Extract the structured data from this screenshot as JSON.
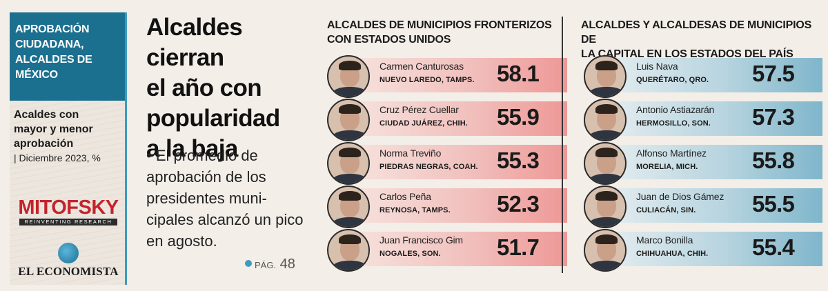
{
  "sidebar": {
    "heading_lines": [
      "APROBACIÓN",
      "CIUDADANA,",
      "ALCALDES DE",
      "MÉXICO"
    ],
    "subtitle_lines": [
      "Acaldes con",
      "mayor y menor",
      "aprobación"
    ],
    "date": "| Diciembre 2023, %",
    "mitofsky": "MITOFSKY",
    "mitofsky_tagline": "REINVENTING RESEARCH",
    "publication": "EL ECONOMISTA"
  },
  "headline_lines": [
    "Alcaldes cierran",
    "el año con",
    "popularidad",
    "a la baja"
  ],
  "summary": "• El promedio de aprobación de los presidentes muni-cipales alcanzó un pico en agosto.",
  "page_ref": {
    "label": "PÁG.",
    "number": "48"
  },
  "border_panel": {
    "title_lines": [
      "ALCALDES DE MUNICIPIOS FRONTERIZOS",
      "CON ESTADOS UNIDOS"
    ],
    "bar_color": "#ee9896",
    "items": [
      {
        "name": "Carmen Canturosas",
        "place": "NUEVO LAREDO, TAMPS.",
        "value": "58.1"
      },
      {
        "name": "Cruz Pérez Cuellar",
        "place": "CIUDAD JUÁREZ, CHIH.",
        "value": "55.9"
      },
      {
        "name": "Norma Treviño",
        "place": "PIEDRAS NEGRAS, COAH.",
        "value": "55.3"
      },
      {
        "name": "Carlos Peña",
        "place": "REYNOSA, TAMPS.",
        "value": "52.3"
      },
      {
        "name": "Juan Francisco Gim",
        "place": "NOGALES, SON.",
        "value": "51.7"
      }
    ]
  },
  "capital_panel": {
    "title_lines": [
      "ALCALDES Y ALCALDESAS DE MUNICIPIOS DE",
      "LA CAPITAL EN LOS ESTADOS DEL PAÍS"
    ],
    "bar_color": "#7fb6cb",
    "items": [
      {
        "name": "Luis Nava",
        "place": "QUERÉTARO, QRO.",
        "value": "57.5"
      },
      {
        "name": "Antonio Astiazarán",
        "place": "HERMOSILLO, SON.",
        "value": "57.3"
      },
      {
        "name": "Alfonso Martínez",
        "place": "MORELIA, MICH.",
        "value": "55.8"
      },
      {
        "name": "Juan de Dios Gámez",
        "place": "CULIACÁN, SIN.",
        "value": "55.5"
      },
      {
        "name": "Marco Bonilla",
        "place": "CHIHUAHUA, CHIH.",
        "value": "55.4"
      }
    ]
  },
  "colors": {
    "accent": "#1b6f8f",
    "brand_red": "#c4232c"
  }
}
